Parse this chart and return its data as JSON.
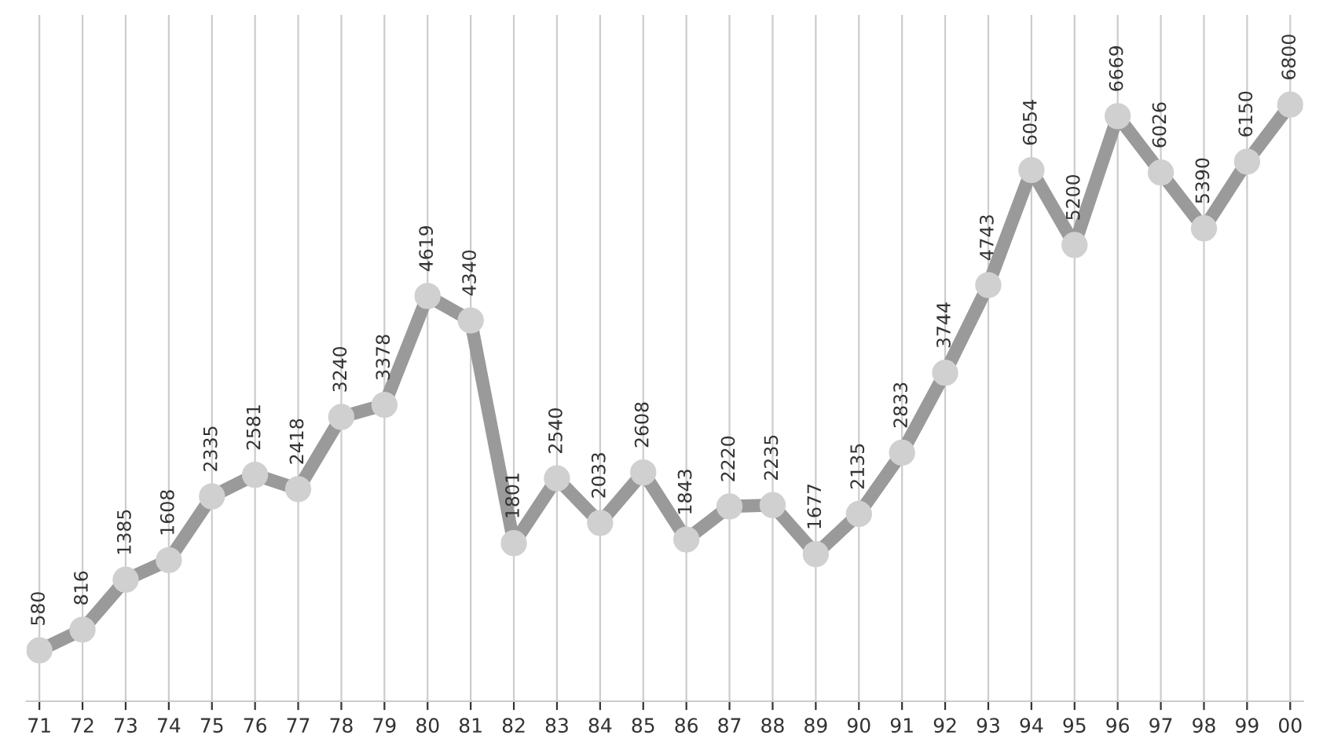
{
  "chart_data": {
    "type": "line",
    "categories": [
      "71",
      "72",
      "73",
      "74",
      "75",
      "76",
      "77",
      "78",
      "79",
      "80",
      "81",
      "82",
      "83",
      "84",
      "85",
      "86",
      "87",
      "88",
      "89",
      "90",
      "91",
      "92",
      "93",
      "94",
      "95",
      "96",
      "97",
      "98",
      "99",
      "00"
    ],
    "series": [
      {
        "color": "#9a9a9a",
        "values": [
          580,
          816,
          1385,
          1608,
          2335,
          2581,
          2418,
          3240,
          3378,
          4619,
          4340,
          1801,
          2540,
          2033,
          2608,
          1843,
          2220,
          2235,
          1677,
          2135,
          2833,
          3744,
          4743,
          6054,
          5200,
          6669,
          6026,
          5390,
          6150,
          6800
        ]
      }
    ],
    "marker": "circle",
    "data_labels": true,
    "grid": "x"
  }
}
